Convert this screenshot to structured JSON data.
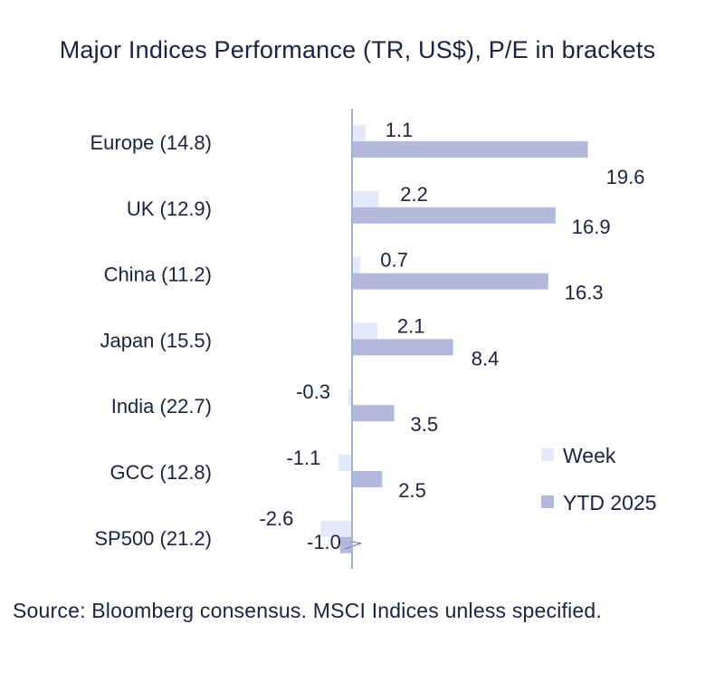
{
  "chart_data": {
    "type": "bar",
    "orientation": "horizontal",
    "title": "Major Indices Performance (TR, US$), P/E in brackets",
    "categories": [
      "Europe (14.8)",
      "UK (12.9)",
      "China (11.2)",
      "Japan (15.5)",
      "India (22.7)",
      "GCC (12.8)",
      "SP500 (21.2)"
    ],
    "series": [
      {
        "name": "Week",
        "values": [
          1.1,
          2.2,
          0.7,
          2.1,
          -0.3,
          -1.1,
          -2.6
        ],
        "labels": [
          "1.1",
          "2.2",
          "0.7",
          "2.1",
          "-0.3",
          "-1.1",
          "-2.6"
        ],
        "color": "#e3e8fb"
      },
      {
        "name": "YTD 2025",
        "values": [
          19.6,
          16.9,
          16.3,
          8.4,
          3.5,
          2.5,
          -1.0
        ],
        "labels": [
          "19.6",
          "16.9",
          "16.3",
          "8.4",
          "3.5",
          "2.5",
          "-1.0"
        ],
        "color": "#b3b9dd"
      }
    ],
    "xlim": [
      -2.6,
      19.6
    ],
    "legend": "right",
    "grid": false,
    "axis_color": "#9fb3d9",
    "text_color": "#1c2240"
  },
  "source": "Source: Bloomberg consensus. MSCI Indices unless specified."
}
